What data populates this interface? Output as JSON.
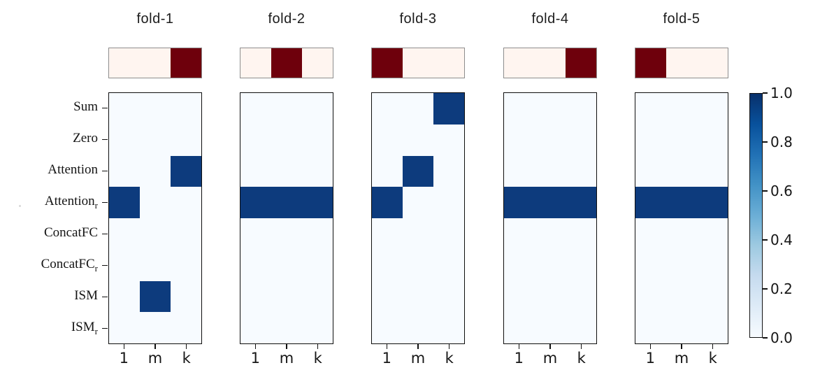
{
  "chart_data": {
    "type": "heatmap",
    "description": "Five-fold model selection heatmaps; dark cell = selected (1.0), light cell = 0.0",
    "columns": [
      "1",
      "m",
      "k"
    ],
    "rows": [
      "Sum",
      "Zero",
      "Attention",
      "Attention_r",
      "ConcatFC",
      "ConcatFC_r",
      "ISM",
      "ISM_r"
    ],
    "panels": [
      {
        "title": "fold-1",
        "top_bar": [
          0,
          0,
          1
        ],
        "matrix": [
          [
            0,
            0,
            0
          ],
          [
            0,
            0,
            0
          ],
          [
            0,
            0,
            1
          ],
          [
            1,
            0,
            0
          ],
          [
            0,
            0,
            0
          ],
          [
            0,
            0,
            0
          ],
          [
            0,
            1,
            0
          ],
          [
            0,
            0,
            0
          ]
        ]
      },
      {
        "title": "fold-2",
        "top_bar": [
          0,
          1,
          0
        ],
        "matrix": [
          [
            0,
            0,
            0
          ],
          [
            0,
            0,
            0
          ],
          [
            0,
            0,
            0
          ],
          [
            1,
            1,
            1
          ],
          [
            0,
            0,
            0
          ],
          [
            0,
            0,
            0
          ],
          [
            0,
            0,
            0
          ],
          [
            0,
            0,
            0
          ]
        ]
      },
      {
        "title": "fold-3",
        "top_bar": [
          1,
          0,
          0
        ],
        "matrix": [
          [
            0,
            0,
            1
          ],
          [
            0,
            0,
            0
          ],
          [
            0,
            1,
            0
          ],
          [
            1,
            0,
            0
          ],
          [
            0,
            0,
            0
          ],
          [
            0,
            0,
            0
          ],
          [
            0,
            0,
            0
          ],
          [
            0,
            0,
            0
          ]
        ]
      },
      {
        "title": "fold-4",
        "top_bar": [
          0,
          0,
          1
        ],
        "matrix": [
          [
            0,
            0,
            0
          ],
          [
            0,
            0,
            0
          ],
          [
            0,
            0,
            0
          ],
          [
            1,
            1,
            1
          ],
          [
            0,
            0,
            0
          ],
          [
            0,
            0,
            0
          ],
          [
            0,
            0,
            0
          ],
          [
            0,
            0,
            0
          ]
        ]
      },
      {
        "title": "fold-5",
        "top_bar": [
          1,
          0,
          0
        ],
        "matrix": [
          [
            0,
            0,
            0
          ],
          [
            0,
            0,
            0
          ],
          [
            0,
            0,
            0
          ],
          [
            1,
            1,
            1
          ],
          [
            0,
            0,
            0
          ],
          [
            0,
            0,
            0
          ],
          [
            0,
            0,
            0
          ],
          [
            0,
            0,
            0
          ]
        ]
      }
    ],
    "colorbar": {
      "ticks": [
        "1.0",
        "0.8",
        "0.6",
        "0.4",
        "0.2",
        "0.0"
      ],
      "range": [
        0,
        1
      ],
      "cmap": "Blues",
      "position": "right"
    },
    "heat_value_range": [
      0,
      1
    ],
    "grid": false,
    "legend": false
  },
  "display": {
    "row_labels": [
      {
        "base": "Sum",
        "sub": ""
      },
      {
        "base": "Zero",
        "sub": ""
      },
      {
        "base": "Attention",
        "sub": ""
      },
      {
        "base": "Attention",
        "sub": "r"
      },
      {
        "base": "ConcatFC",
        "sub": ""
      },
      {
        "base": "ConcatFC",
        "sub": "r"
      },
      {
        "base": "ISM",
        "sub": ""
      },
      {
        "base": "ISM",
        "sub": "r"
      }
    ],
    "col_labels": [
      "1",
      "m",
      "k"
    ]
  },
  "colors": {
    "heat_on": "#0d3b7d",
    "heat_off": "#f7fbff",
    "select_on": "#6e000c",
    "select_off": "#fff5f0",
    "blues_gradient": [
      "#f7fbff",
      "#deebf7",
      "#c6dbef",
      "#9ecae1",
      "#6baed6",
      "#4292c6",
      "#2171b5",
      "#08519c",
      "#08306b"
    ]
  }
}
